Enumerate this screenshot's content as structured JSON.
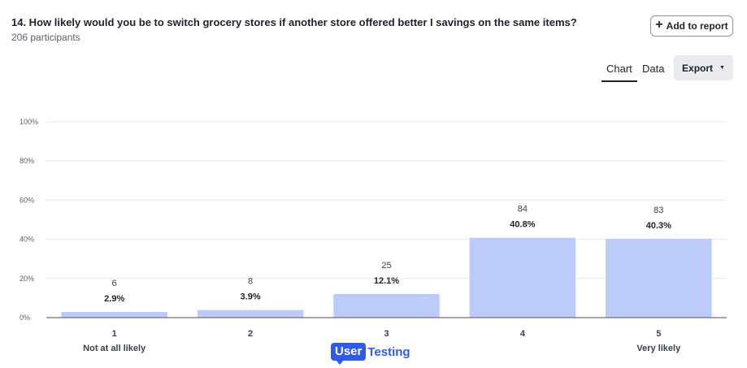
{
  "question": {
    "title": "14. How likely would you be to switch grocery stores if another store offered better I savings on the same items?",
    "participants": "206 participants"
  },
  "toolbar": {
    "add_label": "Add to report",
    "tabs": [
      "Chart",
      "Data"
    ],
    "active_tab": "Chart",
    "export_label": "Export"
  },
  "logo": {
    "part1": "User",
    "part2": "Testing"
  },
  "colors": {
    "bar": "#bccbfa",
    "accent": "#2f5bea",
    "grid": "#e6e8eb",
    "axis": "#6b7077"
  },
  "chart_data": {
    "type": "bar",
    "categories": [
      "1",
      "2",
      "3",
      "4",
      "5"
    ],
    "category_sublabels": [
      "Not at all likely",
      "",
      "",
      "",
      "Very likely"
    ],
    "counts": [
      6,
      8,
      25,
      84,
      83
    ],
    "percent_labels": [
      "2.9%",
      "3.9%",
      "12.1%",
      "40.8%",
      "40.3%"
    ],
    "values": [
      2.9,
      3.9,
      12.1,
      40.8,
      40.3
    ],
    "y_ticks": [
      "0%",
      "20%",
      "40%",
      "60%",
      "80%",
      "100%"
    ],
    "ylim": [
      0,
      100
    ],
    "grid": true
  }
}
